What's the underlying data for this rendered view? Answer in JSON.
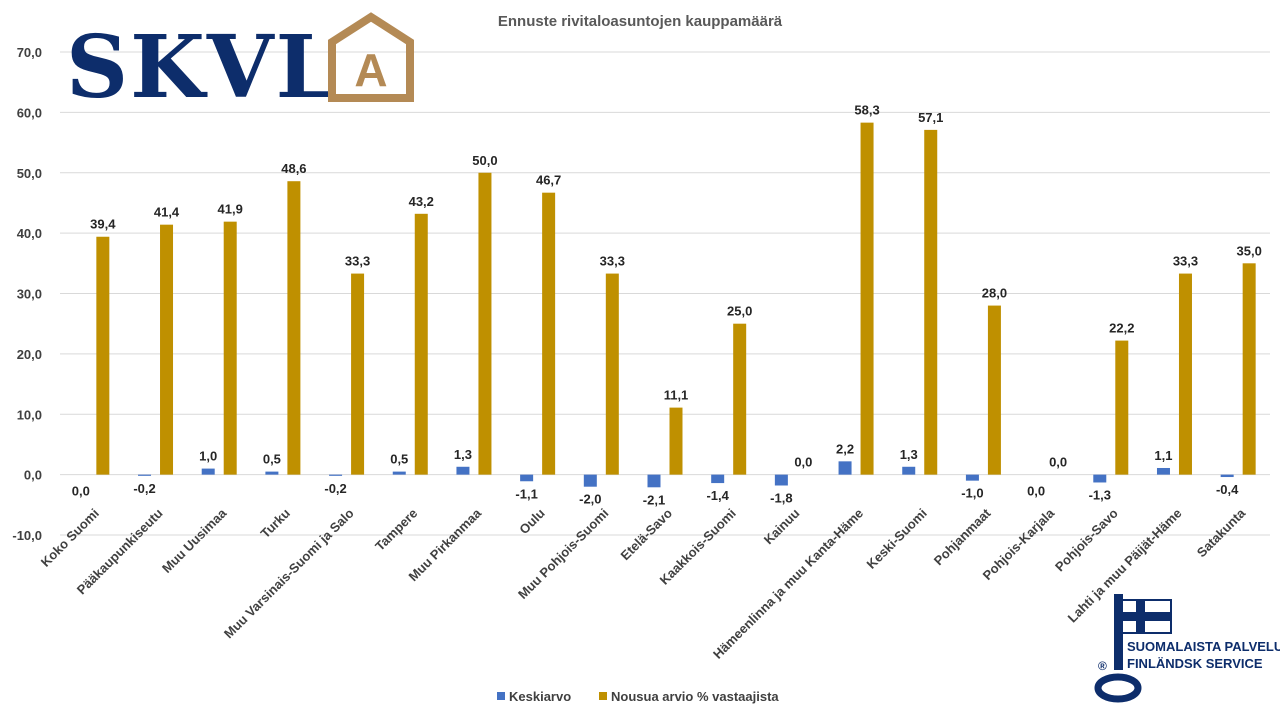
{
  "logo": {
    "text": "SKVL",
    "house_letter": "A",
    "colors": {
      "text": "#0d2d6b",
      "house": "#b48a55"
    }
  },
  "badge": {
    "line1": "SUOMALAISTA PALVELUA",
    "line2": "FINLÄNDSK SERVICE",
    "registered": "®",
    "color": "#0d2d6b"
  },
  "chart_data": {
    "type": "bar",
    "title": "Ennuste rivitaloasuntojen kauppamäärä",
    "xlabel": "",
    "ylabel": "",
    "ylim": [
      -10,
      70
    ],
    "ytick_labels": [
      "70,0",
      "60,0",
      "50,0",
      "40,0",
      "30,0",
      "20,0",
      "10,0",
      "0,0",
      "-10,0"
    ],
    "grid": true,
    "legend_position": "bottom",
    "categories": [
      "Koko Suomi",
      "Pääkaupunkiseutu",
      "Muu Uusimaa",
      "Turku",
      "Muu Varsinais-Suomi ja Salo",
      "Tampere",
      "Muu Pirkanmaa",
      "Oulu",
      "Muu Pohjois-Suomi",
      "Etelä-Savo",
      "Kaakkois-Suomi",
      "Kainuu",
      "Hämeenlinna ja muu Kanta-Häme",
      "Keski-Suomi",
      "Pohjanmaat",
      "Pohjois-Karjala",
      "Pohjois-Savo",
      "Lahti ja muu Päijät-Häme",
      "Satakunta"
    ],
    "series": [
      {
        "name": "Keskiarvo",
        "color": "#4472c4",
        "values": [
          0.0,
          -0.2,
          1.0,
          0.5,
          -0.2,
          0.5,
          1.3,
          -1.1,
          -2.0,
          -2.1,
          -1.4,
          -1.8,
          2.2,
          1.3,
          -1.0,
          0.0,
          -1.3,
          1.1,
          -0.4
        ],
        "labels": [
          "0,0",
          "-0,2",
          "1,0",
          "0,5",
          "-0,2",
          "0,5",
          "1,3",
          "-1,1",
          "-2,0",
          "-2,1",
          "-1,4",
          "-1,8",
          "2,2",
          "1,3",
          "-1,0",
          "0,0",
          "-1,3",
          "1,1",
          "-0,4"
        ]
      },
      {
        "name": "Nousua arvio % vastaajista",
        "color": "#bf9000",
        "values": [
          39.4,
          41.4,
          41.9,
          48.6,
          33.3,
          43.2,
          50.0,
          46.7,
          33.3,
          11.1,
          25.0,
          0.0,
          58.3,
          57.1,
          28.0,
          0.0,
          22.2,
          33.3,
          35.0
        ],
        "labels": [
          "39,4",
          "41,4",
          "41,9",
          "48,6",
          "33,3",
          "43,2",
          "50,0",
          "46,7",
          "33,3",
          "11,1",
          "25,0",
          "0,0",
          "58,3",
          "57,1",
          "28,0",
          "0,0",
          "22,2",
          "33,3",
          "35,0"
        ]
      }
    ]
  }
}
